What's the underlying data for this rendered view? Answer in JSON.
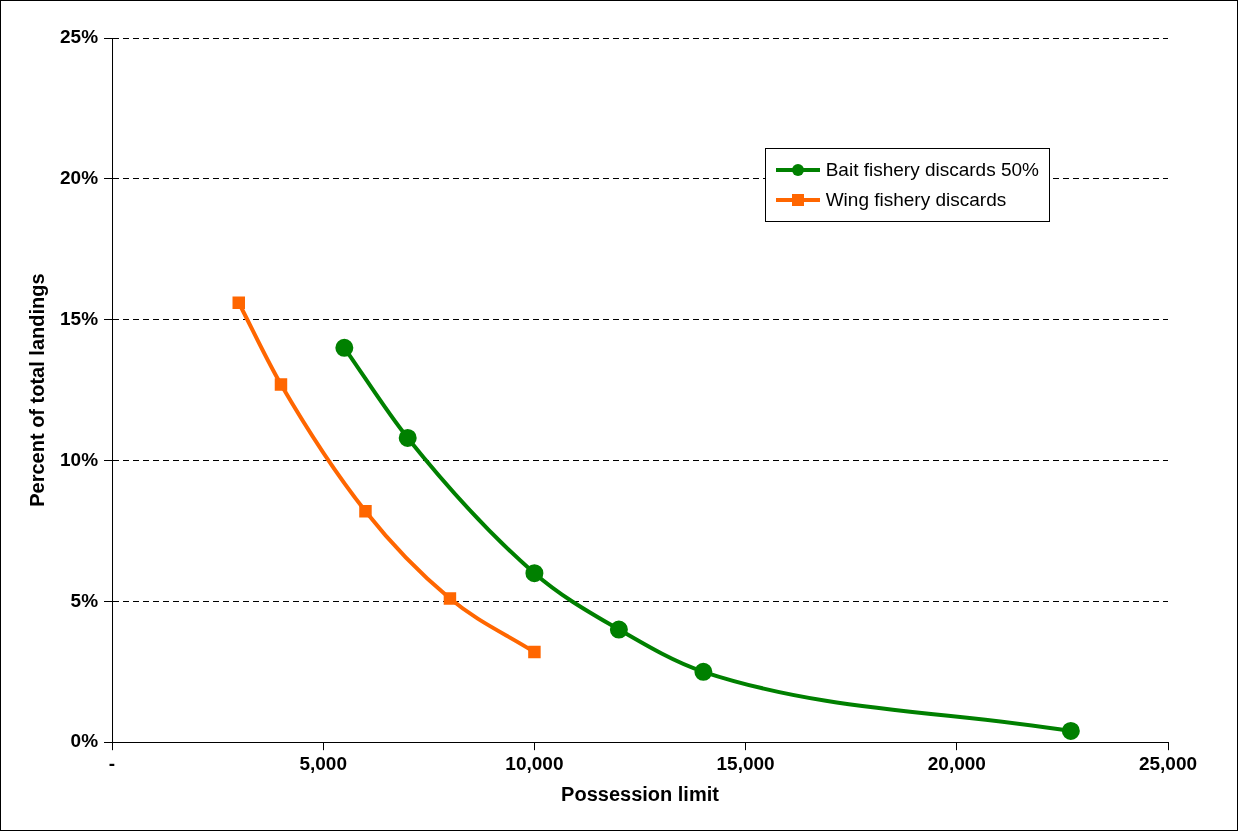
{
  "chart_data": {
    "type": "line",
    "xlabel": "Possession limit",
    "ylabel": "Percent of total landings",
    "xlim": [
      0,
      25000
    ],
    "xticks": [
      {
        "value": 0,
        "label": "-"
      },
      {
        "value": 5000,
        "label": "5,000"
      },
      {
        "value": 10000,
        "label": "10,000"
      },
      {
        "value": 15000,
        "label": "15,000"
      },
      {
        "value": 20000,
        "label": "20,000"
      },
      {
        "value": 25000,
        "label": "25,000"
      }
    ],
    "ylim": [
      0,
      25
    ],
    "yticks": [
      {
        "value": 0,
        "label": "0%"
      },
      {
        "value": 5,
        "label": "5%"
      },
      {
        "value": 10,
        "label": "10%"
      },
      {
        "value": 15,
        "label": "15%"
      },
      {
        "value": 20,
        "label": "20%"
      },
      {
        "value": 25,
        "label": "25%"
      }
    ],
    "grid": "y",
    "legend": "top right",
    "line_style": "solid",
    "series": [
      {
        "name": "Bait fishery discards 50%",
        "color": "#008000",
        "marker": "circle",
        "x": [
          5500,
          7000,
          10000,
          12000,
          14000,
          22700
        ],
        "values": [
          14.0,
          10.8,
          6.0,
          4.0,
          2.5,
          0.4
        ]
      },
      {
        "name": "Wing fishery discards",
        "color": "#ff6600",
        "marker": "square",
        "x": [
          3000,
          4000,
          6000,
          8000,
          10000
        ],
        "values": [
          15.6,
          12.7,
          8.2,
          5.1,
          3.2
        ]
      }
    ]
  }
}
